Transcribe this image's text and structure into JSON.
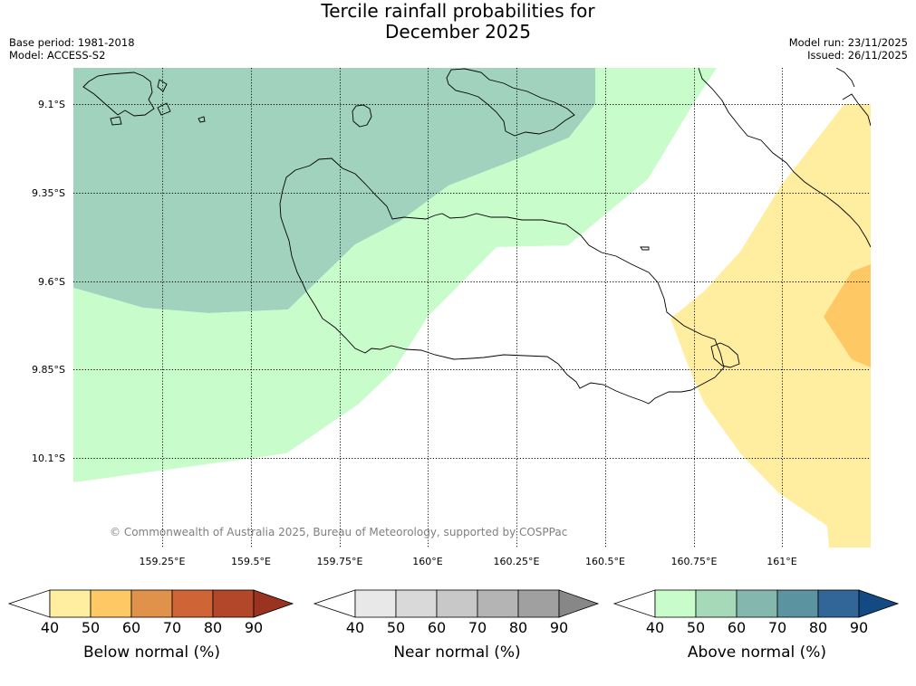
{
  "title": {
    "line1": "Tercile rainfall probabilities for",
    "line2": "December 2025"
  },
  "meta_left": {
    "base_period": "Base period: 1981-2018",
    "model": "Model: ACCESS-S2"
  },
  "meta_right": {
    "model_run": "Model run: 23/11/2025",
    "issued": "Issued: 26/11/2025"
  },
  "map": {
    "lat_labels": [
      "9.1°S",
      "9.35°S",
      "9.6°S",
      "9.85°S",
      "10.1°S"
    ],
    "lon_labels": [
      "159.25°E",
      "159.5°E",
      "159.75°E",
      "160°E",
      "160.25°E",
      "160.5°E",
      "160.75°E",
      "161°E"
    ],
    "copyright": "© Commonwealth of Australia 2025, Bureau of Meteorology, supported by COSPPac",
    "regions": [
      {
        "category": "Above normal",
        "bin": "50-60"
      },
      {
        "category": "Above normal",
        "bin": "40-50"
      },
      {
        "category": "Below normal",
        "bin": "40-50"
      },
      {
        "category": "Below normal",
        "bin": "50-60"
      }
    ]
  },
  "colorbars": [
    {
      "label": "Below normal (%)",
      "ticks": [
        "40",
        "50",
        "60",
        "70",
        "80",
        "90"
      ],
      "colors": [
        "#ffffff",
        "#ffeda0",
        "#fec965",
        "#e0924a",
        "#cf6536",
        "#b2472a",
        "#9a3320"
      ]
    },
    {
      "label": "Near normal (%)",
      "ticks": [
        "40",
        "50",
        "60",
        "70",
        "80",
        "90"
      ],
      "colors": [
        "#ffffff",
        "#e8e8e8",
        "#d9d9d9",
        "#c8c8c8",
        "#b4b4b4",
        "#a0a0a0",
        "#878787"
      ]
    },
    {
      "label": "Above normal (%)",
      "ticks": [
        "40",
        "50",
        "60",
        "70",
        "80",
        "90"
      ],
      "colors": [
        "#ffffff",
        "#c9fccb",
        "#a5d9b7",
        "#84b8ae",
        "#5b93a1",
        "#326699",
        "#144a83"
      ]
    }
  ]
}
